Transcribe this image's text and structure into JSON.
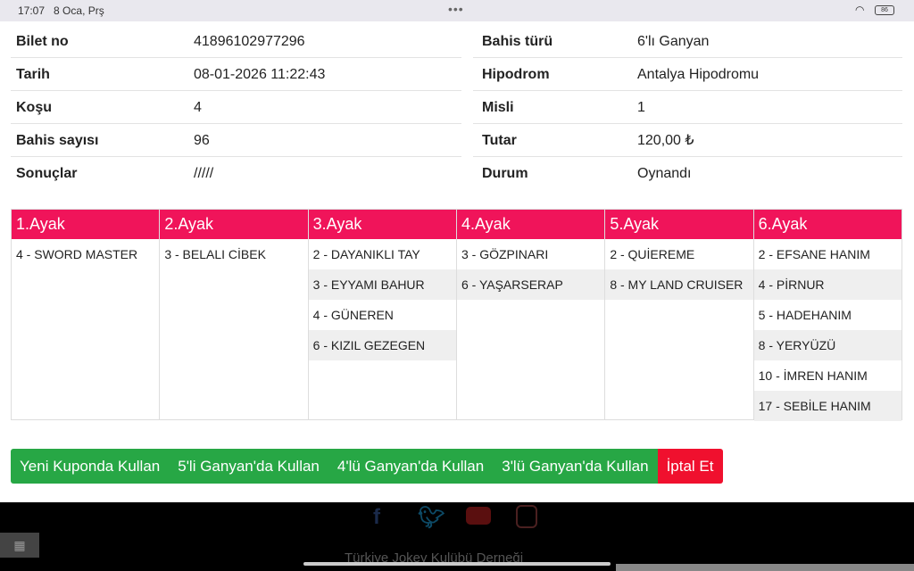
{
  "status_bar": {
    "time": "17:07",
    "date": "8 Oca, Prş",
    "battery": "86"
  },
  "info": {
    "left": [
      {
        "label": "Bilet no",
        "value": "41896102977296"
      },
      {
        "label": "Tarih",
        "value": "08-01-2026 11:22:43"
      },
      {
        "label": "Koşu",
        "value": "4"
      },
      {
        "label": "Bahis sayısı",
        "value": "96"
      },
      {
        "label": "Sonuçlar",
        "value": "/////"
      }
    ],
    "right": [
      {
        "label": "Bahis türü",
        "value": "6'lı Ganyan"
      },
      {
        "label": "Hipodrom",
        "value": "Antalya Hipodromu"
      },
      {
        "label": "Misli",
        "value": "1"
      },
      {
        "label": "Tutar",
        "value": "120,00 ₺"
      },
      {
        "label": "Durum",
        "value": "Oynandı"
      }
    ]
  },
  "legs": [
    {
      "title": "1.Ayak",
      "horses": [
        "4 - SWORD MASTER"
      ]
    },
    {
      "title": "2.Ayak",
      "horses": [
        "3 - BELALI CİBEK"
      ]
    },
    {
      "title": "3.Ayak",
      "horses": [
        "2 - DAYANIKLI TAY",
        "3 - EYYAMI BAHUR",
        "4 - GÜNEREN",
        "6 - KIZIL GEZEGEN"
      ]
    },
    {
      "title": "4.Ayak",
      "horses": [
        "3 - GÖZPINARI",
        "6 - YAŞARSERAP"
      ]
    },
    {
      "title": "5.Ayak",
      "horses": [
        "2 - QUİEREME",
        "8 - MY LAND CRUISER"
      ]
    },
    {
      "title": "6.Ayak",
      "horses": [
        "2 - EFSANE HANIM",
        "4 - PİRNUR",
        "5 - HADEHANIM",
        "8 - YERYÜZÜ",
        "10 - İMREN HANIM",
        "17 - SEBİLE HANIM"
      ]
    }
  ],
  "buttons": {
    "new_coupon": "Yeni Kuponda Kullan",
    "ganyan5": "5'li Ganyan'da Kullan",
    "ganyan4": "4'lü Ganyan'da Kullan",
    "ganyan3": "3'lü Ganyan'da Kullan",
    "cancel": "İptal Et"
  },
  "footer": {
    "text": "Türkiye Jokey Kulübü Derneği",
    "social": [
      "facebook-icon",
      "twitter-icon",
      "youtube-icon",
      "instagram-icon"
    ]
  },
  "colors": {
    "header": "#f0145a",
    "green": "#27a745",
    "red": "#f0102e"
  }
}
